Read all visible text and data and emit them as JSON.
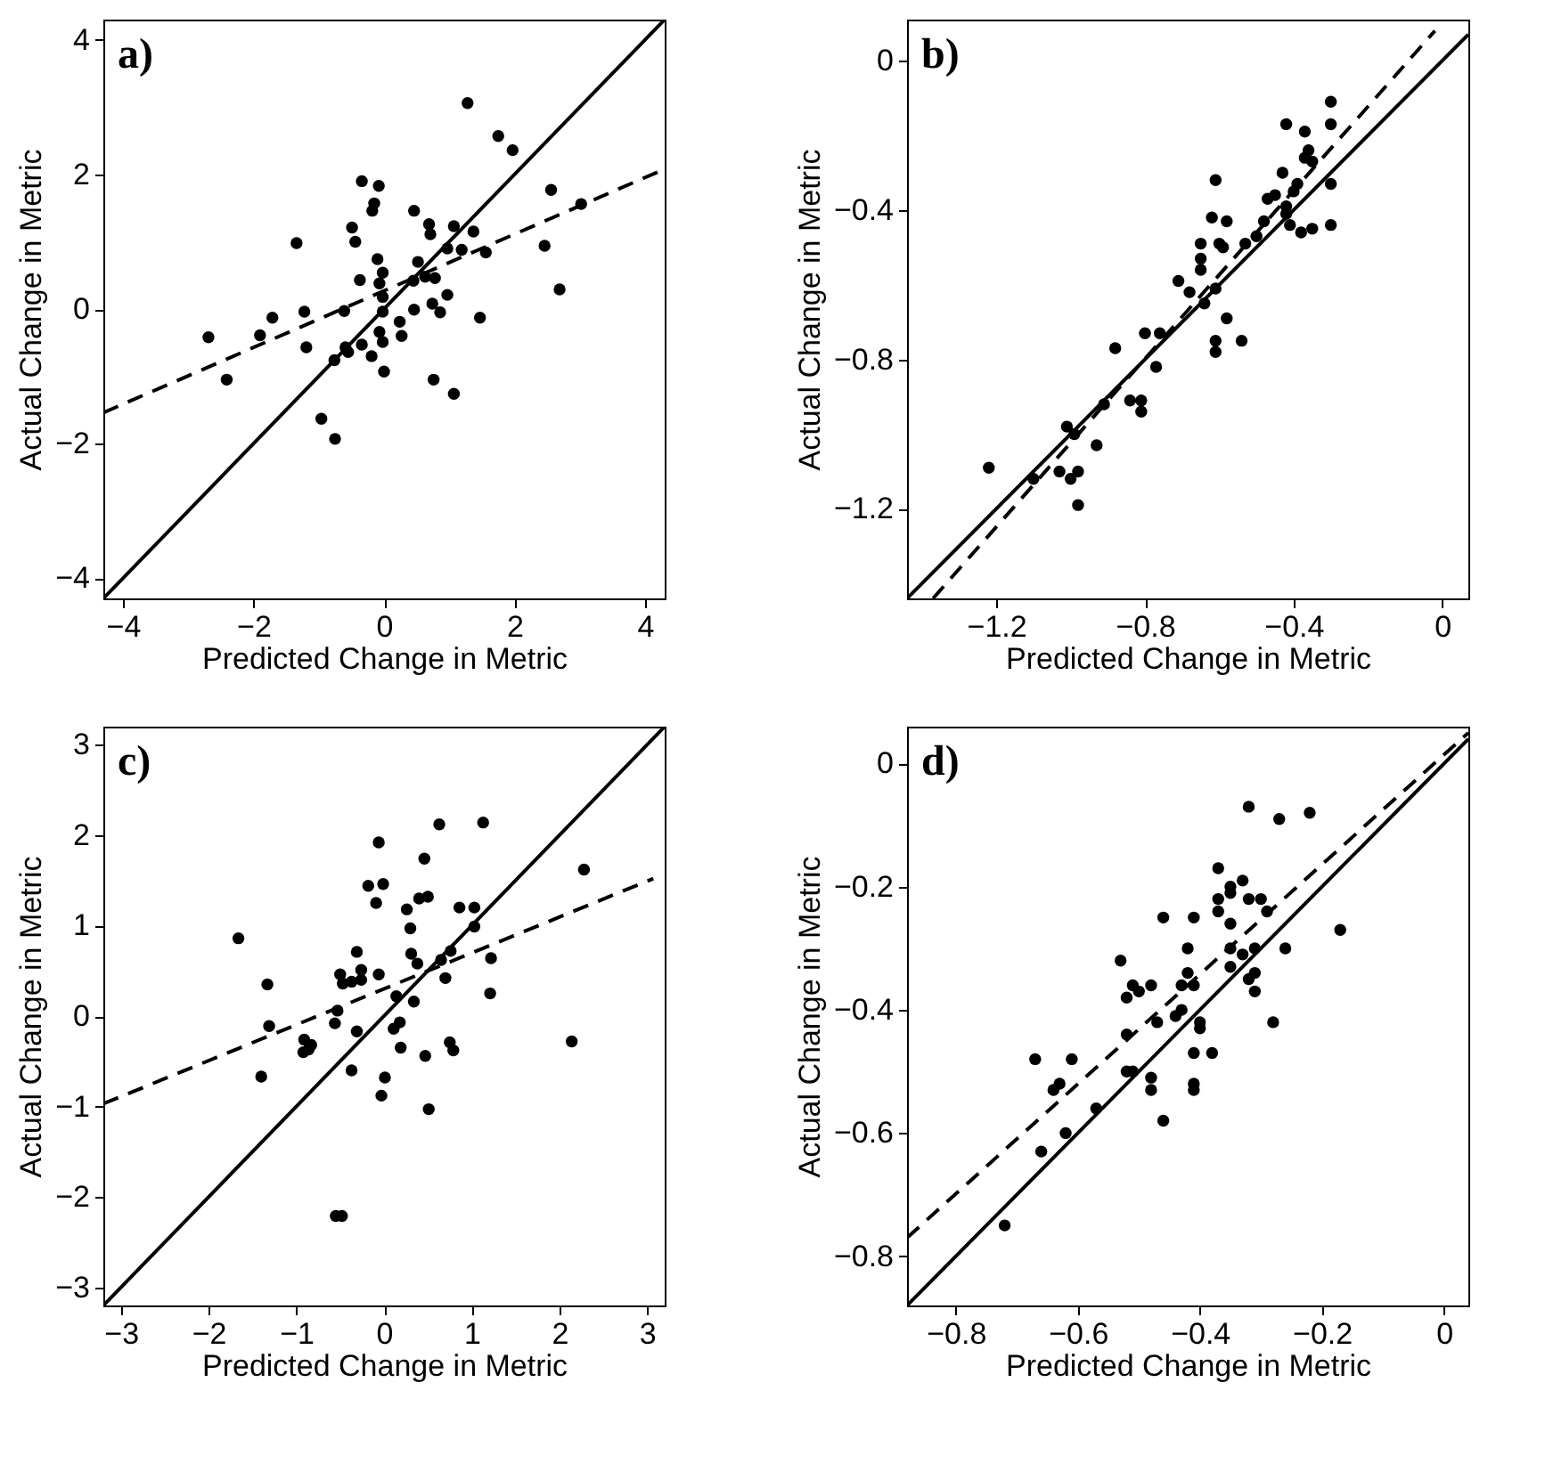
{
  "chart_data": [
    {
      "type": "scatter",
      "xlabel": "Predicted Change in Metric",
      "ylabel": "Actual Change in Metric",
      "annotations": [
        "a)"
      ],
      "xlim": [
        -4.3,
        4.3
      ],
      "ylim": [
        -4.3,
        4.3
      ],
      "xticks": [
        -4,
        -2,
        0,
        2,
        4
      ],
      "yticks": [
        -4,
        -2,
        0,
        2,
        4
      ],
      "series": [
        {
          "marker": "circle",
          "color": "#000000",
          "x": [
            1.28,
            1.75,
            1.97,
            -0.34,
            -0.08,
            -0.15,
            -0.18,
            2.56,
            3.02,
            0.46,
            -0.49,
            0.69,
            1.07,
            0.71,
            1.37,
            -0.44,
            -1.34,
            0.97,
            1.19,
            1.56,
            2.46,
            -0.1,
            0.52,
            -0.02,
            -0.37,
            -0.07,
            0.45,
            0.63,
            0.78,
            2.69,
            -0.02,
            0.97,
            0.74,
            -2.69,
            -2.41,
            -1.9,
            -1.71,
            -1.22,
            -1.19,
            -0.61,
            -0.02,
            0.46,
            0.86,
            1.47,
            -0.07,
            0.24,
            0.27,
            -0.02,
            -0.59,
            -0.55,
            -0.34,
            -0.19,
            -0.76,
            0.0,
            0.76,
            1.07,
            -0.96,
            -0.75
          ],
          "values": [
            3.06,
            2.57,
            2.36,
            1.9,
            1.83,
            1.57,
            1.46,
            1.77,
            1.56,
            1.46,
            1.21,
            1.26,
            1.23,
            1.11,
            1.15,
            1.0,
            0.98,
            0.9,
            0.88,
            0.84,
            0.94,
            0.74,
            0.7,
            0.54,
            0.43,
            0.38,
            0.42,
            0.48,
            0.46,
            0.29,
            0.18,
            0.21,
            0.08,
            -0.42,
            -1.05,
            -0.39,
            -0.13,
            -0.04,
            -0.57,
            -0.03,
            -0.04,
            -0.01,
            -0.05,
            -0.13,
            -0.34,
            -0.19,
            -0.4,
            -0.49,
            -0.57,
            -0.64,
            -0.53,
            -0.7,
            -0.76,
            -0.93,
            -1.05,
            -1.26,
            -1.63,
            -1.93
          ]
        },
        {
          "type": "line",
          "color": "#000000",
          "line_style": "solid",
          "x": [
            -4.3,
            4.3
          ],
          "values": [
            -4.3,
            4.3
          ]
        },
        {
          "type": "line",
          "color": "#000000",
          "line_style": "dashed",
          "x": [
            -4.3,
            4.3
          ],
          "values": [
            -1.54,
            2.08
          ]
        }
      ]
    },
    {
      "type": "scatter",
      "xlabel": "Predicted Change in Metric",
      "ylabel": "Actual Change in Metric",
      "annotations": [
        "b)"
      ],
      "xlim": [
        -1.44,
        0.07
      ],
      "ylim": [
        -1.44,
        0.11
      ],
      "xticks": [
        -1.2,
        -0.8,
        -0.4,
        0
      ],
      "yticks": [
        -1.2,
        -0.8,
        -0.4,
        0
      ],
      "series": [
        {
          "marker": "circle",
          "color": "#000000",
          "x": [
            -0.3,
            -0.3,
            -0.42,
            -0.37,
            -0.36,
            -0.37,
            -0.35,
            -0.43,
            -0.3,
            -0.39,
            -0.4,
            -0.45,
            -0.47,
            -0.61,
            -0.42,
            -0.42,
            -0.48,
            -0.62,
            -0.58,
            -0.3,
            -0.41,
            -0.38,
            -0.35,
            -0.5,
            -0.53,
            -0.65,
            -0.6,
            -0.59,
            -0.65,
            -0.65,
            -0.71,
            -0.61,
            -0.68,
            -0.64,
            -0.58,
            -0.61,
            -0.61,
            -0.54,
            -0.8,
            -0.76,
            -0.77,
            -0.88,
            -0.84,
            -0.81,
            -0.81,
            -0.91,
            -0.93,
            -1.01,
            -0.99,
            -1.03,
            -1.0,
            -0.98,
            -0.98,
            -1.1,
            -1.22
          ],
          "values": [
            -0.11,
            -0.17,
            -0.17,
            -0.19,
            -0.24,
            -0.26,
            -0.27,
            -0.3,
            -0.33,
            -0.33,
            -0.35,
            -0.36,
            -0.37,
            -0.32,
            -0.39,
            -0.41,
            -0.43,
            -0.42,
            -0.43,
            -0.44,
            -0.44,
            -0.46,
            -0.45,
            -0.47,
            -0.49,
            -0.49,
            -0.49,
            -0.5,
            -0.53,
            -0.56,
            -0.59,
            -0.61,
            -0.62,
            -0.65,
            -0.69,
            -0.75,
            -0.78,
            -0.75,
            -0.73,
            -0.73,
            -0.82,
            -0.77,
            -0.91,
            -0.91,
            -0.94,
            -0.92,
            -1.03,
            -0.98,
            -1.0,
            -1.1,
            -1.12,
            -1.1,
            -1.19,
            -1.12,
            -1.09
          ]
        },
        {
          "type": "line",
          "color": "#000000",
          "line_style": "solid",
          "x": [
            -1.44,
            0.07
          ],
          "values": [
            -1.44,
            0.07
          ]
        },
        {
          "type": "line",
          "color": "#000000",
          "line_style": "dashed",
          "x": [
            -1.37,
            -0.02
          ],
          "values": [
            -1.44,
            0.08
          ]
        }
      ]
    },
    {
      "type": "scatter",
      "xlabel": "Predicted Change in Metric",
      "ylabel": "Actual Change in Metric",
      "annotations": [
        "c)"
      ],
      "xlim": [
        -3.2,
        3.2
      ],
      "ylim": [
        -3.2,
        3.2
      ],
      "xticks": [
        -3,
        -2,
        -1,
        0,
        1,
        2,
        3
      ],
      "yticks": [
        -3,
        -2,
        -1,
        0,
        1,
        2,
        3
      ],
      "series": [
        {
          "marker": "circle",
          "color": "#000000",
          "x": [
            0.63,
            1.13,
            -0.06,
            0.46,
            2.28,
            -0.18,
            -0.01,
            0.4,
            0.5,
            -0.09,
            0.26,
            0.86,
            1.03,
            1.03,
            0.3,
            -1.66,
            -0.31,
            0.31,
            0.76,
            0.38,
            0.65,
            1.22,
            -0.5,
            -0.06,
            -0.26,
            -0.47,
            -0.37,
            -0.26,
            0.7,
            -1.33,
            1.21,
            0.14,
            0.34,
            -0.53,
            -0.56,
            -1.31,
            -0.31,
            0.18,
            0.11,
            0.19,
            -0.91,
            -0.83,
            -0.92,
            -0.86,
            0.75,
            0.79,
            0.47,
            2.14,
            -0.37,
            -1.4,
            0.01,
            -0.03,
            0.51,
            -0.55,
            -0.48
          ],
          "values": [
            2.12,
            2.14,
            1.92,
            1.74,
            1.62,
            1.44,
            1.46,
            1.3,
            1.32,
            1.25,
            1.18,
            1.2,
            1.2,
            0.99,
            0.97,
            0.86,
            0.71,
            0.69,
            0.72,
            0.58,
            0.62,
            0.64,
            0.46,
            0.46,
            0.51,
            0.36,
            0.38,
            0.4,
            0.42,
            0.35,
            0.25,
            0.22,
            0.16,
            0.06,
            -0.08,
            -0.11,
            -0.17,
            -0.07,
            -0.14,
            -0.35,
            -0.26,
            -0.32,
            -0.4,
            -0.37,
            -0.29,
            -0.38,
            -0.44,
            -0.28,
            -0.6,
            -0.67,
            -0.68,
            -0.88,
            -1.03,
            -2.21,
            -2.21
          ]
        },
        {
          "type": "line",
          "color": "#000000",
          "line_style": "solid",
          "x": [
            -3.2,
            3.2
          ],
          "values": [
            -3.2,
            3.2
          ]
        },
        {
          "type": "line",
          "color": "#000000",
          "line_style": "dashed",
          "x": [
            -3.2,
            3.07
          ],
          "values": [
            -0.97,
            1.52
          ]
        }
      ]
    },
    {
      "type": "scatter",
      "xlabel": "Predicted Change in Metric",
      "ylabel": "Actual Change in Metric",
      "annotations": [
        "d)"
      ],
      "xlim": [
        -0.88,
        0.04
      ],
      "ylim": [
        -0.88,
        0.06
      ],
      "xticks": [
        -0.8,
        -0.6,
        -0.4,
        -0.2,
        0
      ],
      "yticks": [
        -0.8,
        -0.6,
        -0.4,
        -0.2,
        0
      ],
      "series": [
        {
          "marker": "circle",
          "color": "#000000",
          "x": [
            -0.32,
            -0.27,
            -0.22,
            -0.37,
            -0.33,
            -0.35,
            -0.35,
            -0.37,
            -0.37,
            -0.32,
            -0.3,
            -0.29,
            -0.35,
            -0.46,
            -0.41,
            -0.17,
            -0.35,
            -0.42,
            -0.26,
            -0.31,
            -0.33,
            -0.35,
            -0.53,
            -0.31,
            -0.32,
            -0.31,
            -0.42,
            -0.43,
            -0.41,
            -0.51,
            -0.5,
            -0.48,
            -0.52,
            -0.43,
            -0.44,
            -0.47,
            -0.4,
            -0.4,
            -0.28,
            -0.52,
            -0.41,
            -0.38,
            -0.67,
            -0.61,
            -0.52,
            -0.51,
            -0.48,
            -0.48,
            -0.41,
            -0.41,
            -0.63,
            -0.64,
            -0.57,
            -0.46,
            -0.62,
            -0.66,
            -0.72
          ],
          "values": [
            -0.07,
            -0.09,
            -0.08,
            -0.17,
            -0.19,
            -0.2,
            -0.21,
            -0.22,
            -0.24,
            -0.22,
            -0.22,
            -0.24,
            -0.26,
            -0.25,
            -0.25,
            -0.27,
            -0.3,
            -0.3,
            -0.3,
            -0.3,
            -0.31,
            -0.33,
            -0.32,
            -0.34,
            -0.35,
            -0.37,
            -0.34,
            -0.36,
            -0.36,
            -0.36,
            -0.37,
            -0.36,
            -0.38,
            -0.4,
            -0.41,
            -0.42,
            -0.42,
            -0.43,
            -0.42,
            -0.44,
            -0.47,
            -0.47,
            -0.48,
            -0.48,
            -0.5,
            -0.5,
            -0.51,
            -0.53,
            -0.52,
            -0.53,
            -0.52,
            -0.53,
            -0.56,
            -0.58,
            -0.6,
            -0.63,
            -0.75
          ]
        },
        {
          "type": "line",
          "color": "#000000",
          "line_style": "solid",
          "x": [
            -0.88,
            0.04
          ],
          "values": [
            -0.88,
            0.04
          ]
        },
        {
          "type": "line",
          "color": "#000000",
          "line_style": "dashed",
          "x": [
            -0.88,
            0.04
          ],
          "values": [
            -0.77,
            0.05
          ]
        }
      ]
    }
  ]
}
